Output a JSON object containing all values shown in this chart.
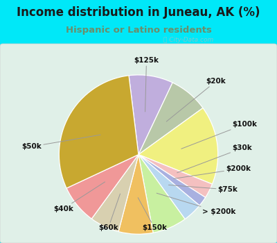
{
  "title": "Income distribution in Juneau, AK (%)",
  "subtitle": "Hispanic or Latino residents",
  "title_color": "#1a1a1a",
  "subtitle_color": "#6b8e6b",
  "bg_color": "#00e8f8",
  "chart_bg_left": "#dff0e8",
  "chart_bg_right": "#f0faf0",
  "watermark": "City-Data.com",
  "slices": [
    {
      "label": "$125k",
      "value": 9,
      "color": "#c0aedd"
    },
    {
      "label": "$20k",
      "value": 8,
      "color": "#b8c8a8"
    },
    {
      "label": "$100k",
      "value": 16,
      "color": "#f0f080"
    },
    {
      "label": "$30k",
      "value": 3,
      "color": "#f4c0c0"
    },
    {
      "label": "$200k",
      "value": 2,
      "color": "#a8b0e0"
    },
    {
      "label": "$75k",
      "value": 4,
      "color": "#b8d8f0"
    },
    {
      "label": "> $200k",
      "value": 7,
      "color": "#c8f0a0"
    },
    {
      "label": "$150k",
      "value": 7,
      "color": "#f0c060"
    },
    {
      "label": "$60k",
      "value": 6,
      "color": "#d8d0b0"
    },
    {
      "label": "$40k",
      "value": 8,
      "color": "#f09898"
    },
    {
      "label": "$50k",
      "value": 30,
      "color": "#c8a830"
    }
  ],
  "title_fontsize": 12,
  "subtitle_fontsize": 9.5,
  "label_fontsize": 7.5
}
